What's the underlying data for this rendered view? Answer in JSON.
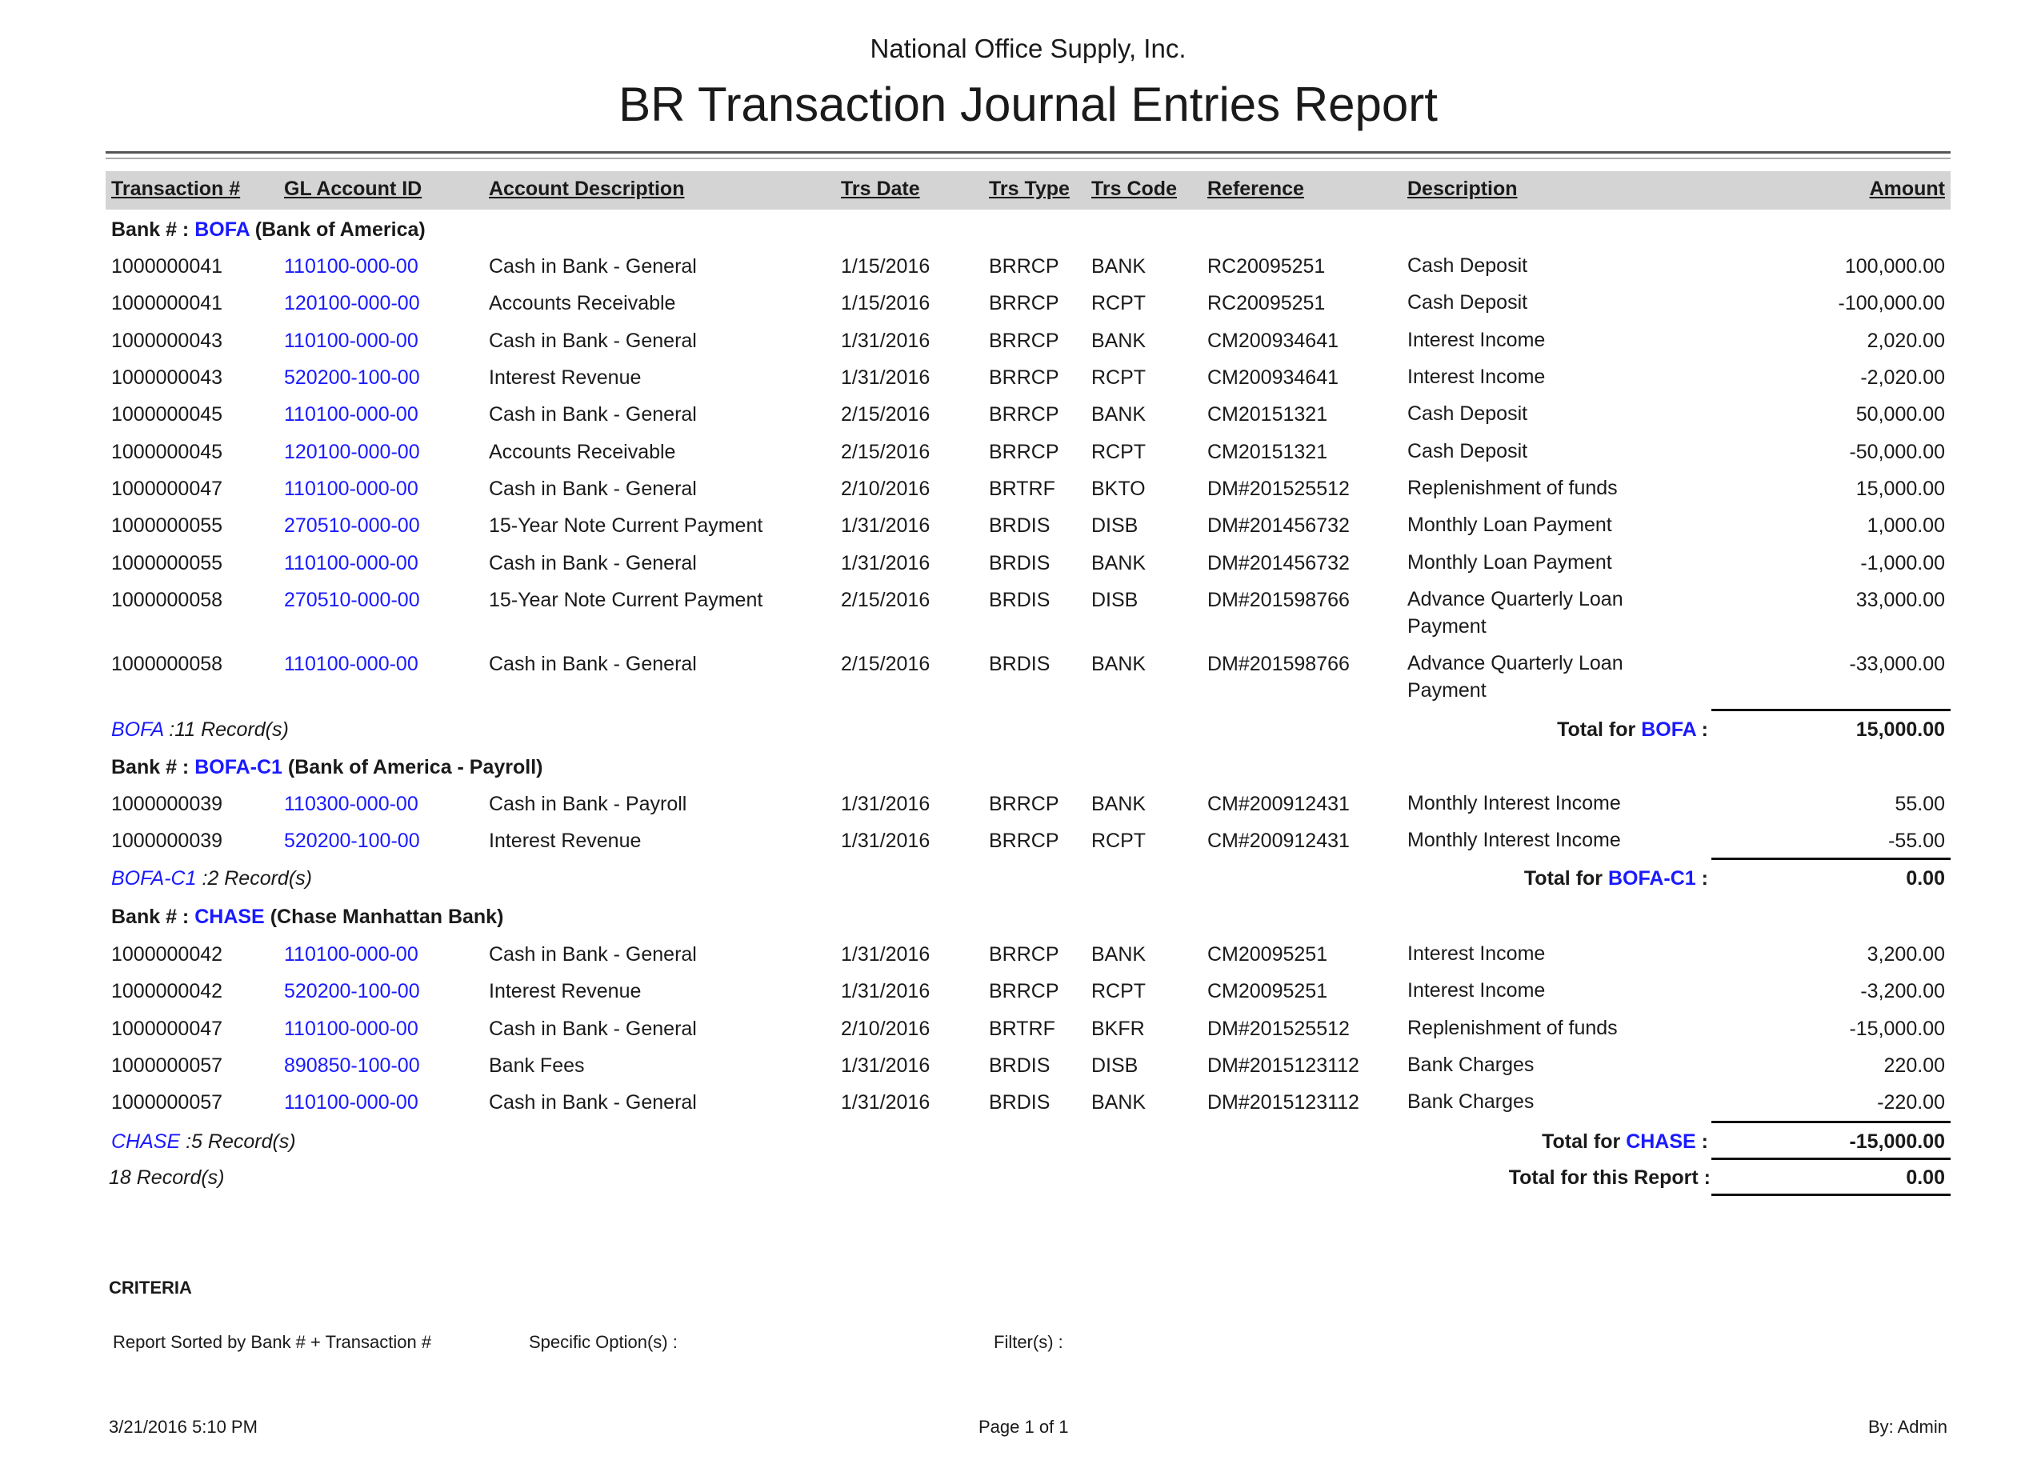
{
  "header": {
    "company": "National Office Supply, Inc.",
    "title": "BR Transaction Journal Entries Report"
  },
  "columns": [
    "Transaction #",
    "GL Account ID",
    "Account Description",
    "Trs Date",
    "Trs Type",
    "Trs Code",
    "Reference",
    "Description",
    "Amount"
  ],
  "bank_label": "Bank # :",
  "total_for_label": "Total for",
  "colors": {
    "link": "#1a1aff",
    "header_band": "#d4d4d4"
  },
  "banks": [
    {
      "code": "BOFA",
      "name": "(Bank of America)",
      "records_label": ":11 Record(s)",
      "total": "15,000.00",
      "rows": [
        [
          "1000000041",
          "110100-000-00",
          "Cash in Bank - General",
          "1/15/2016",
          "BRRCP",
          "BANK",
          "RC20095251",
          "Cash Deposit",
          "100,000.00"
        ],
        [
          "1000000041",
          "120100-000-00",
          "Accounts Receivable",
          "1/15/2016",
          "BRRCP",
          "RCPT",
          "RC20095251",
          "Cash Deposit",
          "-100,000.00"
        ],
        [
          "1000000043",
          "110100-000-00",
          "Cash in Bank - General",
          "1/31/2016",
          "BRRCP",
          "BANK",
          "CM200934641",
          "Interest Income",
          "2,020.00"
        ],
        [
          "1000000043",
          "520200-100-00",
          "Interest Revenue",
          "1/31/2016",
          "BRRCP",
          "RCPT",
          "CM200934641",
          "Interest Income",
          "-2,020.00"
        ],
        [
          "1000000045",
          "110100-000-00",
          "Cash in Bank - General",
          "2/15/2016",
          "BRRCP",
          "BANK",
          "CM20151321",
          "Cash Deposit",
          "50,000.00"
        ],
        [
          "1000000045",
          "120100-000-00",
          "Accounts Receivable",
          "2/15/2016",
          "BRRCP",
          "RCPT",
          "CM20151321",
          "Cash Deposit",
          "-50,000.00"
        ],
        [
          "1000000047",
          "110100-000-00",
          "Cash in Bank - General",
          "2/10/2016",
          "BRTRF",
          "BKTO",
          "DM#201525512",
          "Replenishment of funds",
          "15,000.00"
        ],
        [
          "1000000055",
          "270510-000-00",
          "15-Year Note Current Payment",
          "1/31/2016",
          "BRDIS",
          "DISB",
          "DM#201456732",
          "Monthly Loan Payment",
          "1,000.00"
        ],
        [
          "1000000055",
          "110100-000-00",
          "Cash in Bank - General",
          "1/31/2016",
          "BRDIS",
          "BANK",
          "DM#201456732",
          "Monthly Loan Payment",
          "-1,000.00"
        ],
        [
          "1000000058",
          "270510-000-00",
          "15-Year Note Current Payment",
          "2/15/2016",
          "BRDIS",
          "DISB",
          "DM#201598766",
          "Advance Quarterly Loan Payment",
          "33,000.00"
        ],
        [
          "1000000058",
          "110100-000-00",
          "Cash in Bank - General",
          "2/15/2016",
          "BRDIS",
          "BANK",
          "DM#201598766",
          "Advance Quarterly Loan Payment",
          "-33,000.00"
        ]
      ]
    },
    {
      "code": "BOFA-C1",
      "name": "(Bank of America - Payroll)",
      "records_label": ":2 Record(s)",
      "total": "0.00",
      "rows": [
        [
          "1000000039",
          "110300-000-00",
          "Cash in Bank - Payroll",
          "1/31/2016",
          "BRRCP",
          "BANK",
          "CM#200912431",
          "Monthly Interest Income",
          "55.00"
        ],
        [
          "1000000039",
          "520200-100-00",
          "Interest Revenue",
          "1/31/2016",
          "BRRCP",
          "RCPT",
          "CM#200912431",
          "Monthly Interest Income",
          "-55.00"
        ]
      ]
    },
    {
      "code": "CHASE",
      "name": "(Chase Manhattan Bank)",
      "records_label": ":5 Record(s)",
      "total": "-15,000.00",
      "rows": [
        [
          "1000000042",
          "110100-000-00",
          "Cash in Bank - General",
          "1/31/2016",
          "BRRCP",
          "BANK",
          "CM20095251",
          "Interest Income",
          "3,200.00"
        ],
        [
          "1000000042",
          "520200-100-00",
          "Interest Revenue",
          "1/31/2016",
          "BRRCP",
          "RCPT",
          "CM20095251",
          "Interest Income",
          "-3,200.00"
        ],
        [
          "1000000047",
          "110100-000-00",
          "Cash in Bank - General",
          "2/10/2016",
          "BRTRF",
          "BKFR",
          "DM#201525512",
          "Replenishment of funds",
          "-15,000.00"
        ],
        [
          "1000000057",
          "890850-100-00",
          "Bank Fees",
          "1/31/2016",
          "BRDIS",
          "DISB",
          "DM#2015123112",
          "Bank Charges",
          "220.00"
        ],
        [
          "1000000057",
          "110100-000-00",
          "Cash in Bank - General",
          "1/31/2016",
          "BRDIS",
          "BANK",
          "DM#2015123112",
          "Bank Charges",
          "-220.00"
        ]
      ]
    }
  ],
  "report_total": {
    "records": "18 Record(s)",
    "label": "Total for this Report :",
    "value": "0.00"
  },
  "criteria": {
    "title": "CRITERIA",
    "sorted_by": "Report Sorted by Bank # + Transaction #",
    "specific_options": "Specific Option(s) :",
    "filters": "Filter(s) :"
  },
  "footer": {
    "printed": "3/21/2016 5:10 PM",
    "page": "Page 1 of 1",
    "by": "By: Admin"
  }
}
